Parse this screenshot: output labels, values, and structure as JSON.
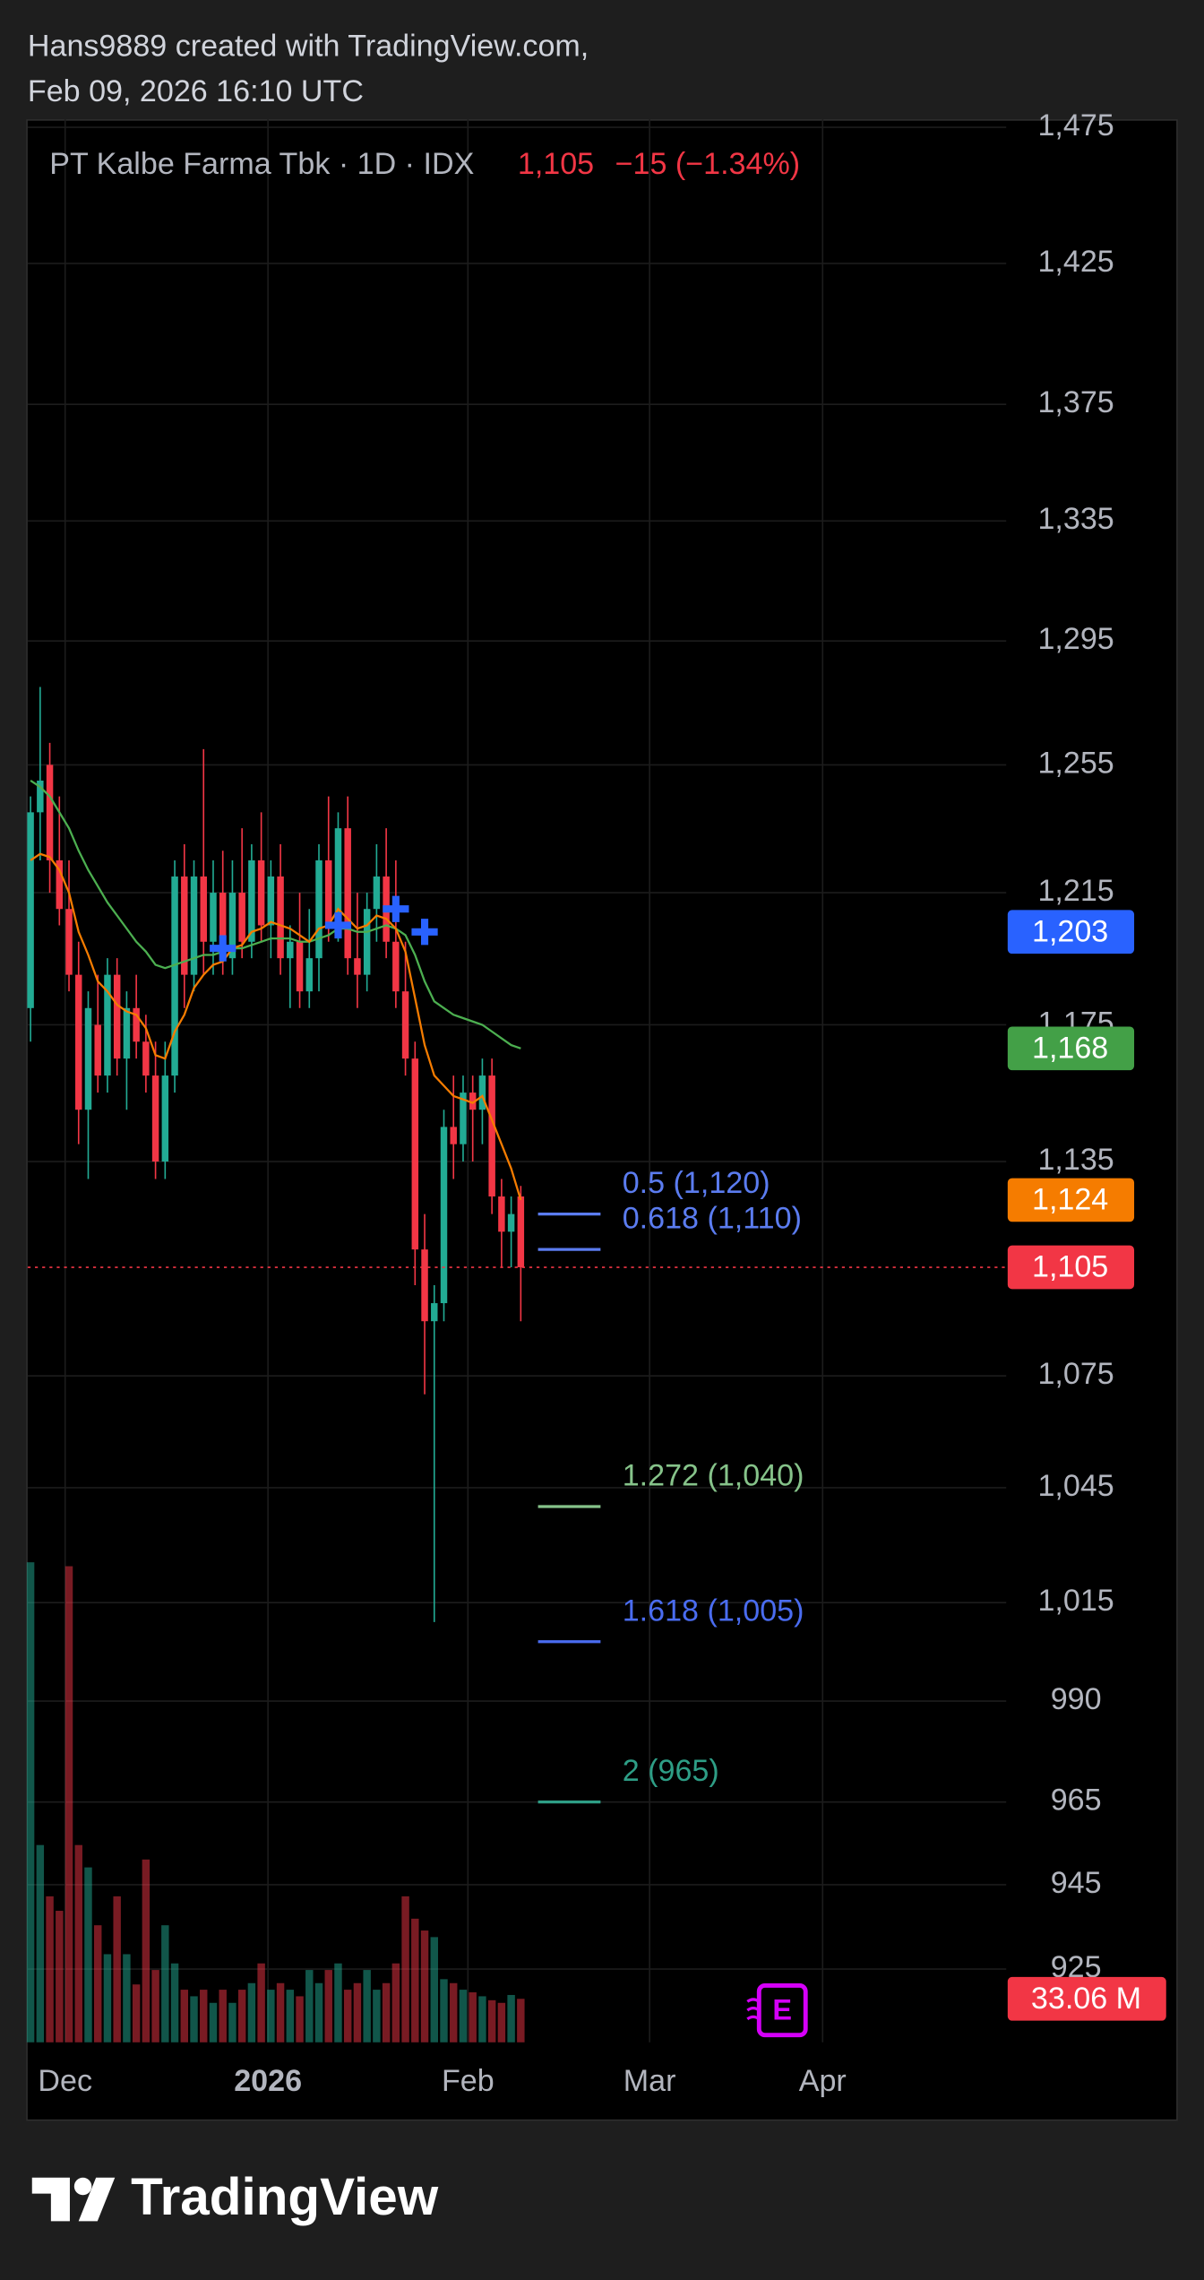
{
  "header": {
    "author_line": "Hans9889 created with TradingView.com,",
    "date_line": "Feb 09, 2026 16:10 UTC"
  },
  "chart_data": {
    "type": "candlestick",
    "title": "PT Kalbe Farma Tbk · 1D · IDX",
    "last_price_label": "1,105",
    "change_label": "−15 (−1.34%)",
    "log_scale": true,
    "grid": true,
    "up_color": "#22ab94",
    "down_color": "#f23645",
    "ylim": [
      908,
      1478
    ],
    "yticks": [
      {
        "value": 1475,
        "label": "1,475"
      },
      {
        "value": 1425,
        "label": "1,425"
      },
      {
        "value": 1375,
        "label": "1,375"
      },
      {
        "value": 1335,
        "label": "1,335"
      },
      {
        "value": 1295,
        "label": "1,295"
      },
      {
        "value": 1255,
        "label": "1,255"
      },
      {
        "value": 1215,
        "label": "1,215"
      },
      {
        "value": 1175,
        "label": "1,175"
      },
      {
        "value": 1135,
        "label": "1,135"
      },
      {
        "value": 1075,
        "label": "1,075"
      },
      {
        "value": 1045,
        "label": "1,045"
      },
      {
        "value": 1015,
        "label": "1,015"
      },
      990,
      965,
      945,
      925
    ],
    "xlim": [
      -0.3,
      101.5
    ],
    "xticks": [
      {
        "value": 3.6,
        "label": "Dec"
      },
      {
        "value": 24.7,
        "label": "2026"
      },
      {
        "value": 45.5,
        "label": "Feb"
      },
      {
        "value": 64.4,
        "label": "Mar"
      },
      {
        "value": 82.4,
        "label": "Apr"
      }
    ],
    "open": [
      1180,
      1240,
      1255,
      1225,
      1210,
      1190,
      1150,
      1175,
      1160,
      1190,
      1165,
      1180,
      1170,
      1160,
      1135,
      1160,
      1220,
      1190,
      1220,
      1200,
      1215,
      1195,
      1215,
      1200,
      1225,
      1205,
      1220,
      1195,
      1200,
      1185,
      1195,
      1225,
      1205,
      1235,
      1195,
      1190,
      1210,
      1220,
      1200,
      1185,
      1165,
      1110,
      1090,
      1095,
      1145,
      1140,
      1155,
      1150,
      1160,
      1125,
      1115,
      1125
    ],
    "high": [
      1245,
      1280,
      1262,
      1245,
      1225,
      1200,
      1185,
      1190,
      1195,
      1195,
      1185,
      1190,
      1178,
      1170,
      1170,
      1225,
      1230,
      1225,
      1260,
      1225,
      1228,
      1225,
      1235,
      1230,
      1240,
      1225,
      1230,
      1205,
      1215,
      1210,
      1230,
      1245,
      1240,
      1245,
      1215,
      1215,
      1230,
      1235,
      1225,
      1200,
      1170,
      1120,
      1100,
      1150,
      1160,
      1160,
      1160,
      1165,
      1165,
      1130,
      1125,
      1128
    ],
    "low": [
      1170,
      1225,
      1215,
      1205,
      1185,
      1140,
      1130,
      1155,
      1155,
      1160,
      1150,
      1165,
      1155,
      1130,
      1130,
      1155,
      1180,
      1185,
      1190,
      1190,
      1190,
      1190,
      1195,
      1195,
      1200,
      1195,
      1190,
      1180,
      1180,
      1180,
      1185,
      1200,
      1200,
      1190,
      1180,
      1185,
      1200,
      1195,
      1180,
      1160,
      1100,
      1070,
      1010,
      1090,
      1130,
      1135,
      1135,
      1140,
      1120,
      1105,
      1105,
      1090
    ],
    "close": [
      1240,
      1250,
      1225,
      1210,
      1190,
      1150,
      1180,
      1160,
      1190,
      1165,
      1180,
      1170,
      1160,
      1135,
      1160,
      1220,
      1190,
      1220,
      1200,
      1215,
      1195,
      1215,
      1200,
      1225,
      1205,
      1220,
      1195,
      1200,
      1185,
      1195,
      1225,
      1205,
      1235,
      1195,
      1190,
      1210,
      1220,
      1200,
      1185,
      1165,
      1110,
      1090,
      1095,
      1145,
      1140,
      1155,
      1150,
      1160,
      1125,
      1115,
      1120,
      1105
    ],
    "volume": [
      365,
      150,
      111,
      100,
      362,
      150,
      133,
      89,
      67,
      111,
      67,
      44,
      139,
      55,
      89,
      60,
      40,
      35,
      40,
      30,
      40,
      30,
      40,
      45,
      60,
      40,
      45,
      40,
      35,
      55,
      45,
      55,
      60,
      40,
      45,
      55,
      40,
      45,
      60,
      111,
      94,
      85,
      80,
      48,
      45,
      40,
      38,
      35,
      32,
      30,
      36,
      33.06
    ],
    "volume_label": "33.06 M",
    "series": [
      {
        "color": "#4caf50",
        "values": [
          1250,
          1248,
          1245,
          1240,
          1235,
          1228,
          1222,
          1217,
          1212,
          1208,
          1204,
          1200,
          1197,
          1193,
          1192,
          1193,
          1194,
          1195,
          1196,
          1196,
          1197,
          1198,
          1198,
          1199,
          1200,
          1201,
          1201,
          1201,
          1200,
          1200,
          1201,
          1202,
          1204,
          1204,
          1203,
          1203,
          1204,
          1205,
          1204,
          1202,
          1196,
          1188,
          1182,
          1180,
          1178,
          1177,
          1176,
          1175,
          1173,
          1171,
          1169,
          1168
        ]
      },
      {
        "color": "#f57c00",
        "values": [
          1225,
          1227,
          1226,
          1222,
          1215,
          1203,
          1196,
          1188,
          1185,
          1181,
          1179,
          1178,
          1174,
          1166,
          1165,
          1173,
          1178,
          1186,
          1190,
          1193,
          1194,
          1198,
          1199,
          1203,
          1204,
          1206,
          1205,
          1204,
          1202,
          1200,
          1204,
          1205,
          1210,
          1207,
          1204,
          1205,
          1208,
          1207,
          1204,
          1197,
          1183,
          1169,
          1160,
          1157,
          1154,
          1153,
          1152,
          1154,
          1147,
          1140,
          1133,
          1124
        ]
      }
    ],
    "markers": {
      "color": "#2962ff",
      "values": [
        null,
        null,
        null,
        null,
        null,
        null,
        null,
        null,
        null,
        null,
        null,
        null,
        null,
        null,
        null,
        null,
        null,
        null,
        null,
        null,
        1198,
        null,
        null,
        null,
        null,
        null,
        null,
        null,
        null,
        null,
        null,
        null,
        1205,
        null,
        null,
        null,
        null,
        null,
        1210,
        null,
        null,
        1203,
        null,
        null,
        null,
        null,
        null,
        null,
        null,
        null,
        null,
        null
      ]
    },
    "fib_levels": [
      {
        "label": "0.5 (1,120)",
        "value": 1120,
        "color": "#5b7cf0"
      },
      {
        "label": "0.618 (1,110)",
        "value": 1110,
        "color": "#5b7cf0"
      },
      {
        "label": "1.272 (1,040)",
        "value": 1040,
        "color": "#86c38a"
      },
      {
        "label": "1.618 (1,005)",
        "value": 1005,
        "color": "#4a6cf0"
      },
      {
        "label": "2 (965)",
        "value": 965,
        "color": "#2e9e86"
      }
    ],
    "price_labels": [
      {
        "value": 1203,
        "label": "1,203",
        "color": "#2962ff"
      },
      {
        "value": 1168,
        "label": "1,168",
        "color": "#43a047"
      },
      {
        "value": 1124,
        "label": "1,124",
        "color": "#f57c00"
      },
      {
        "value": 1105,
        "label": "1,105",
        "color": "#f23645"
      }
    ]
  },
  "footer": {
    "brand": "TradingView"
  }
}
